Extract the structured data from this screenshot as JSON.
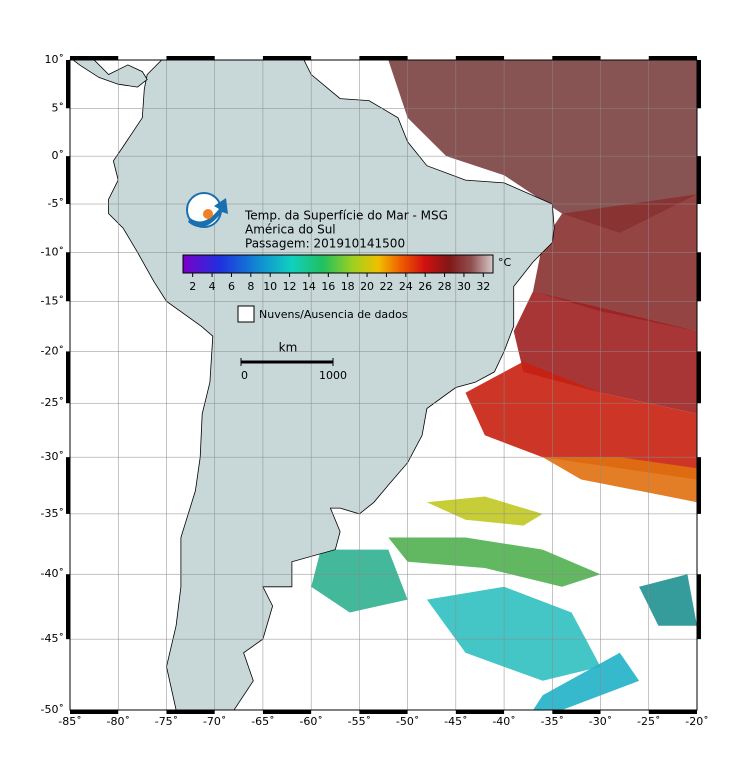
{
  "map": {
    "title_lines": [
      "Temp. da Superfície do Mar - MSG",
      "América do Sul",
      "Passagem: 201910141500"
    ],
    "xlim": [
      -85,
      -20
    ],
    "ylim": [
      -50,
      10
    ],
    "xticks": [
      {
        "value": -85,
        "label": "-85˚"
      },
      {
        "value": -80,
        "label": "-80˚"
      },
      {
        "value": -75,
        "label": "-75˚"
      },
      {
        "value": -70,
        "label": "-70˚"
      },
      {
        "value": -65,
        "label": "-65˚"
      },
      {
        "value": -60,
        "label": "-60˚"
      },
      {
        "value": -55,
        "label": "-55˚"
      },
      {
        "value": -50,
        "label": "-50˚"
      },
      {
        "value": -45,
        "label": "-45˚"
      },
      {
        "value": -40,
        "label": "-40˚"
      },
      {
        "value": -35,
        "label": "-35˚"
      },
      {
        "value": -30,
        "label": "-30˚"
      },
      {
        "value": -25,
        "label": "-25˚"
      },
      {
        "value": -20,
        "label": "-20˚"
      }
    ],
    "yticks": [
      {
        "value": 10,
        "label": "10˚"
      },
      {
        "value": 5,
        "label": "5˚"
      },
      {
        "value": 0,
        "label": "0˚"
      },
      {
        "value": -5,
        "label": "-5˚"
      },
      {
        "value": -10,
        "label": "-10˚"
      },
      {
        "value": -15,
        "label": "-15˚"
      },
      {
        "value": -20,
        "label": "-20˚"
      },
      {
        "value": -25,
        "label": "-25˚"
      },
      {
        "value": -30,
        "label": "-30˚"
      },
      {
        "value": -35,
        "label": "-35˚"
      },
      {
        "value": -40,
        "label": "-40˚"
      },
      {
        "value": -45,
        "label": "-45˚"
      },
      {
        "value": -50,
        "label": "-50˚"
      }
    ],
    "colorbar": {
      "unit": "°C",
      "range": [
        1,
        33
      ],
      "ticks": [
        2,
        4,
        6,
        8,
        10,
        12,
        14,
        16,
        18,
        20,
        22,
        24,
        26,
        28,
        30,
        32
      ]
    },
    "legend": "Nuvens/Ausencia de dados",
    "scale": {
      "unit": "km",
      "ticks": [
        0,
        1000
      ]
    }
  }
}
